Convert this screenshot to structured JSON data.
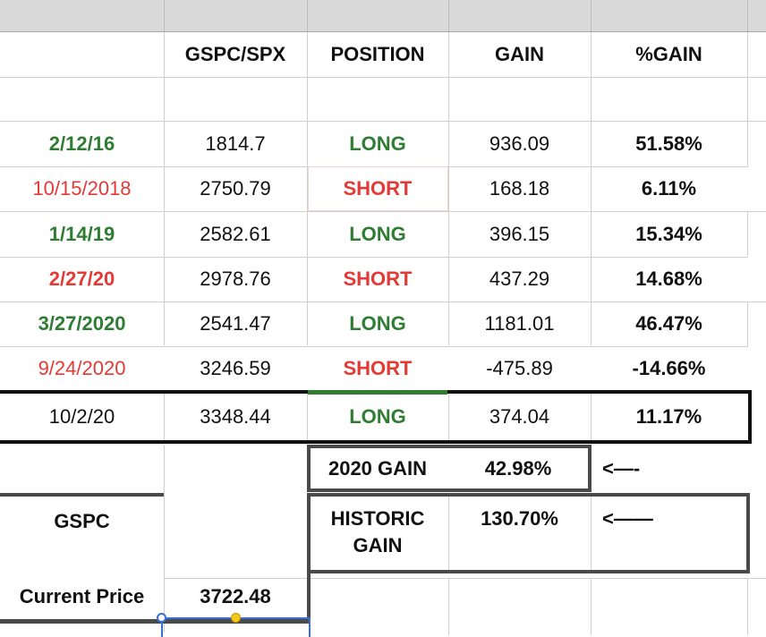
{
  "columns": {
    "index": "GSPC/SPX",
    "position": "POSITION",
    "gain": "GAIN",
    "pct_gain": "%GAIN"
  },
  "trades": [
    {
      "date": "2/12/16",
      "price": "1814.7",
      "position": "LONG",
      "gain": "936.09",
      "pct": "51.58%"
    },
    {
      "date": "10/15/2018",
      "price": "2750.79",
      "position": "SHORT",
      "gain": "168.18",
      "pct": "6.11%"
    },
    {
      "date": "1/14/19",
      "price": "2582.61",
      "position": "LONG",
      "gain": "396.15",
      "pct": "15.34%"
    },
    {
      "date": "2/27/20",
      "price": "2978.76",
      "position": "SHORT",
      "gain": "437.29",
      "pct": "14.68%"
    },
    {
      "date": "3/27/2020",
      "price": "2541.47",
      "position": "LONG",
      "gain": "1181.01",
      "pct": "46.47%"
    },
    {
      "date": "9/24/2020",
      "price": "3246.59",
      "position": "SHORT",
      "gain": "-475.89",
      "pct": "-14.66%"
    },
    {
      "date": "10/2/20",
      "price": "3348.44",
      "position": "LONG",
      "gain": "374.04",
      "pct": "11.17%"
    }
  ],
  "summary": {
    "gain_2020_label": "2020 GAIN",
    "gain_2020_value": "42.98%",
    "arrow_1": "<—-",
    "historic_label": "HISTORIC GAIN",
    "historic_value": "130.70%",
    "arrow_2": "<——"
  },
  "gspc": {
    "label": "GSPC",
    "current_price_label": "Current Price",
    "current_price_value": "3722.48"
  },
  "colors": {
    "long": "#2e7d32",
    "short": "#e53935",
    "selection": "#3a6fd8",
    "handle_fill": "#f5c518"
  }
}
